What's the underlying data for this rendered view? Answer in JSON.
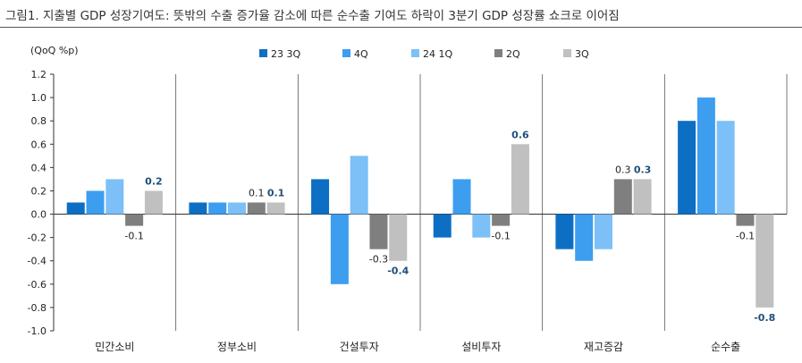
{
  "title": "그림1.  지출별 GDP 성장기여도: 뜻밖의 수출 증가율 감소에 따른 순수출 기여도 하락이 3분기 GDP 성장률 쇼크로 이어짐",
  "chart_data": {
    "type": "bar",
    "unit_label": "(QoQ %p)",
    "ylim": [
      -1.0,
      1.2
    ],
    "yticks": [
      "1.2",
      "1.0",
      "0.8",
      "0.6",
      "0.4",
      "0.2",
      "0.0",
      "-0.2",
      "-0.4",
      "-0.6",
      "-0.8",
      "-1.0"
    ],
    "categories": [
      "민간소비",
      "정부소비",
      "건설투자",
      "설비투자",
      "재고증감",
      "순수출"
    ],
    "series": [
      {
        "name": "23 3Q",
        "color": "#0d6fc4",
        "values": [
          0.1,
          0.1,
          0.3,
          -0.2,
          -0.3,
          0.8
        ]
      },
      {
        "name": "4Q",
        "color": "#3d9ef0",
        "values": [
          0.2,
          0.1,
          -0.6,
          0.3,
          -0.4,
          1.0
        ]
      },
      {
        "name": "24 1Q",
        "color": "#7cc0f7",
        "values": [
          0.3,
          0.1,
          0.5,
          -0.2,
          -0.3,
          0.8
        ]
      },
      {
        "name": "2Q",
        "color": "#7f7f7f",
        "values": [
          -0.1,
          0.1,
          -0.3,
          -0.1,
          0.3,
          -0.1
        ]
      },
      {
        "name": "3Q",
        "color": "#c0c0c0",
        "values": [
          0.2,
          0.1,
          -0.4,
          0.6,
          0.3,
          -0.8
        ]
      }
    ],
    "data_labels": [
      {
        "category": 0,
        "series": 3,
        "text": "-0.1",
        "bold": false
      },
      {
        "category": 0,
        "series": 4,
        "text": "0.2",
        "bold": true
      },
      {
        "category": 1,
        "series": 3,
        "text": "0.1",
        "bold": false
      },
      {
        "category": 1,
        "series": 4,
        "text": "0.1",
        "bold": true
      },
      {
        "category": 2,
        "series": 3,
        "text": "-0.3",
        "bold": false
      },
      {
        "category": 2,
        "series": 4,
        "text": "-0.4",
        "bold": true
      },
      {
        "category": 3,
        "series": 3,
        "text": "-0.1",
        "bold": false
      },
      {
        "category": 3,
        "series": 4,
        "text": "0.6",
        "bold": true
      },
      {
        "category": 4,
        "series": 3,
        "text": "0.3",
        "bold": false
      },
      {
        "category": 4,
        "series": 4,
        "text": "0.3",
        "bold": true
      },
      {
        "category": 5,
        "series": 3,
        "text": "-0.1",
        "bold": false
      },
      {
        "category": 5,
        "series": 4,
        "text": "-0.8",
        "bold": true
      }
    ],
    "legend_position": "top"
  }
}
